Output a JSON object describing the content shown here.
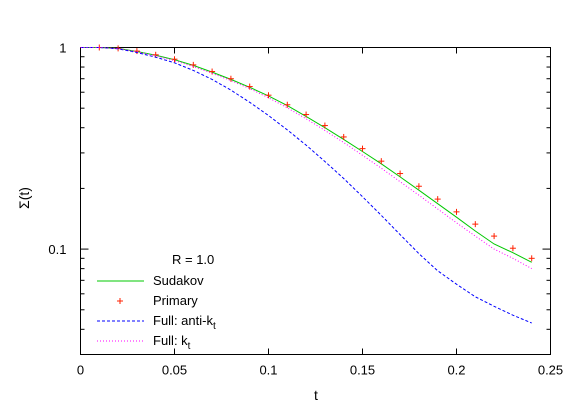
{
  "chart_data": {
    "type": "line",
    "xlabel": "t",
    "ylabel": "Σ(t)",
    "xlim": [
      0,
      0.25
    ],
    "ylim": [
      0.03,
      1.0
    ],
    "yscale": "log",
    "grid": false,
    "legend_position": "bottom-left",
    "annotation": "R = 1.0",
    "x_ticks": [
      {
        "value": 0,
        "label": "0"
      },
      {
        "value": 0.05,
        "label": "0.05"
      },
      {
        "value": 0.1,
        "label": "0.1"
      },
      {
        "value": 0.15,
        "label": "0.15"
      },
      {
        "value": 0.2,
        "label": "0.2"
      },
      {
        "value": 0.25,
        "label": "0.25"
      }
    ],
    "y_ticks": [
      {
        "value": 1,
        "label": "1"
      },
      {
        "value": 0.1,
        "label": "0.1"
      }
    ],
    "series": [
      {
        "name": "Sudakov",
        "style": "line",
        "color": "#00c800",
        "x": [
          0,
          0.01,
          0.02,
          0.03,
          0.04,
          0.05,
          0.06,
          0.07,
          0.08,
          0.09,
          0.1,
          0.11,
          0.12,
          0.13,
          0.14,
          0.15,
          0.16,
          0.17,
          0.18,
          0.19,
          0.2,
          0.21,
          0.22,
          0.23,
          0.24
        ],
        "y": [
          1.0,
          1.0,
          0.99,
          0.955,
          0.915,
          0.87,
          0.815,
          0.755,
          0.695,
          0.635,
          0.575,
          0.515,
          0.455,
          0.4,
          0.35,
          0.305,
          0.265,
          0.228,
          0.196,
          0.168,
          0.144,
          0.123,
          0.106,
          0.096,
          0.086
        ]
      },
      {
        "name": "Primary",
        "style": "points",
        "color": "#ff2000",
        "x": [
          0.01,
          0.02,
          0.03,
          0.04,
          0.05,
          0.06,
          0.07,
          0.08,
          0.09,
          0.1,
          0.11,
          0.12,
          0.13,
          0.14,
          0.15,
          0.16,
          0.17,
          0.18,
          0.19,
          0.2,
          0.21,
          0.22,
          0.23,
          0.24
        ],
        "y": [
          1.0,
          0.99,
          0.96,
          0.92,
          0.875,
          0.82,
          0.76,
          0.7,
          0.64,
          0.58,
          0.52,
          0.465,
          0.41,
          0.36,
          0.315,
          0.273,
          0.237,
          0.205,
          0.177,
          0.153,
          0.133,
          0.116,
          0.101,
          0.09
        ]
      },
      {
        "name": "Full: anti-k",
        "name_subscript": "t",
        "style": "dashed",
        "color": "#0000ff",
        "x": [
          0,
          0.01,
          0.02,
          0.03,
          0.04,
          0.05,
          0.06,
          0.07,
          0.08,
          0.09,
          0.1,
          0.11,
          0.12,
          0.13,
          0.14,
          0.15,
          0.16,
          0.17,
          0.18,
          0.19,
          0.2,
          0.21,
          0.22,
          0.23,
          0.24
        ],
        "y": [
          1.0,
          1.0,
          0.985,
          0.945,
          0.895,
          0.84,
          0.77,
          0.695,
          0.615,
          0.535,
          0.46,
          0.39,
          0.328,
          0.272,
          0.224,
          0.182,
          0.147,
          0.118,
          0.095,
          0.078,
          0.067,
          0.058,
          0.052,
          0.047,
          0.043
        ]
      },
      {
        "name": "Full: k",
        "name_subscript": "t",
        "style": "dotted",
        "color": "#ff00ff",
        "x": [
          0,
          0.01,
          0.02,
          0.03,
          0.04,
          0.05,
          0.06,
          0.07,
          0.08,
          0.09,
          0.1,
          0.11,
          0.12,
          0.13,
          0.14,
          0.15,
          0.16,
          0.17,
          0.18,
          0.19,
          0.2,
          0.21,
          0.22,
          0.23,
          0.24
        ],
        "y": [
          1.0,
          1.0,
          0.99,
          0.953,
          0.91,
          0.86,
          0.805,
          0.745,
          0.685,
          0.625,
          0.563,
          0.502,
          0.443,
          0.388,
          0.338,
          0.292,
          0.252,
          0.216,
          0.185,
          0.158,
          0.135,
          0.116,
          0.1,
          0.09,
          0.08
        ]
      }
    ]
  }
}
